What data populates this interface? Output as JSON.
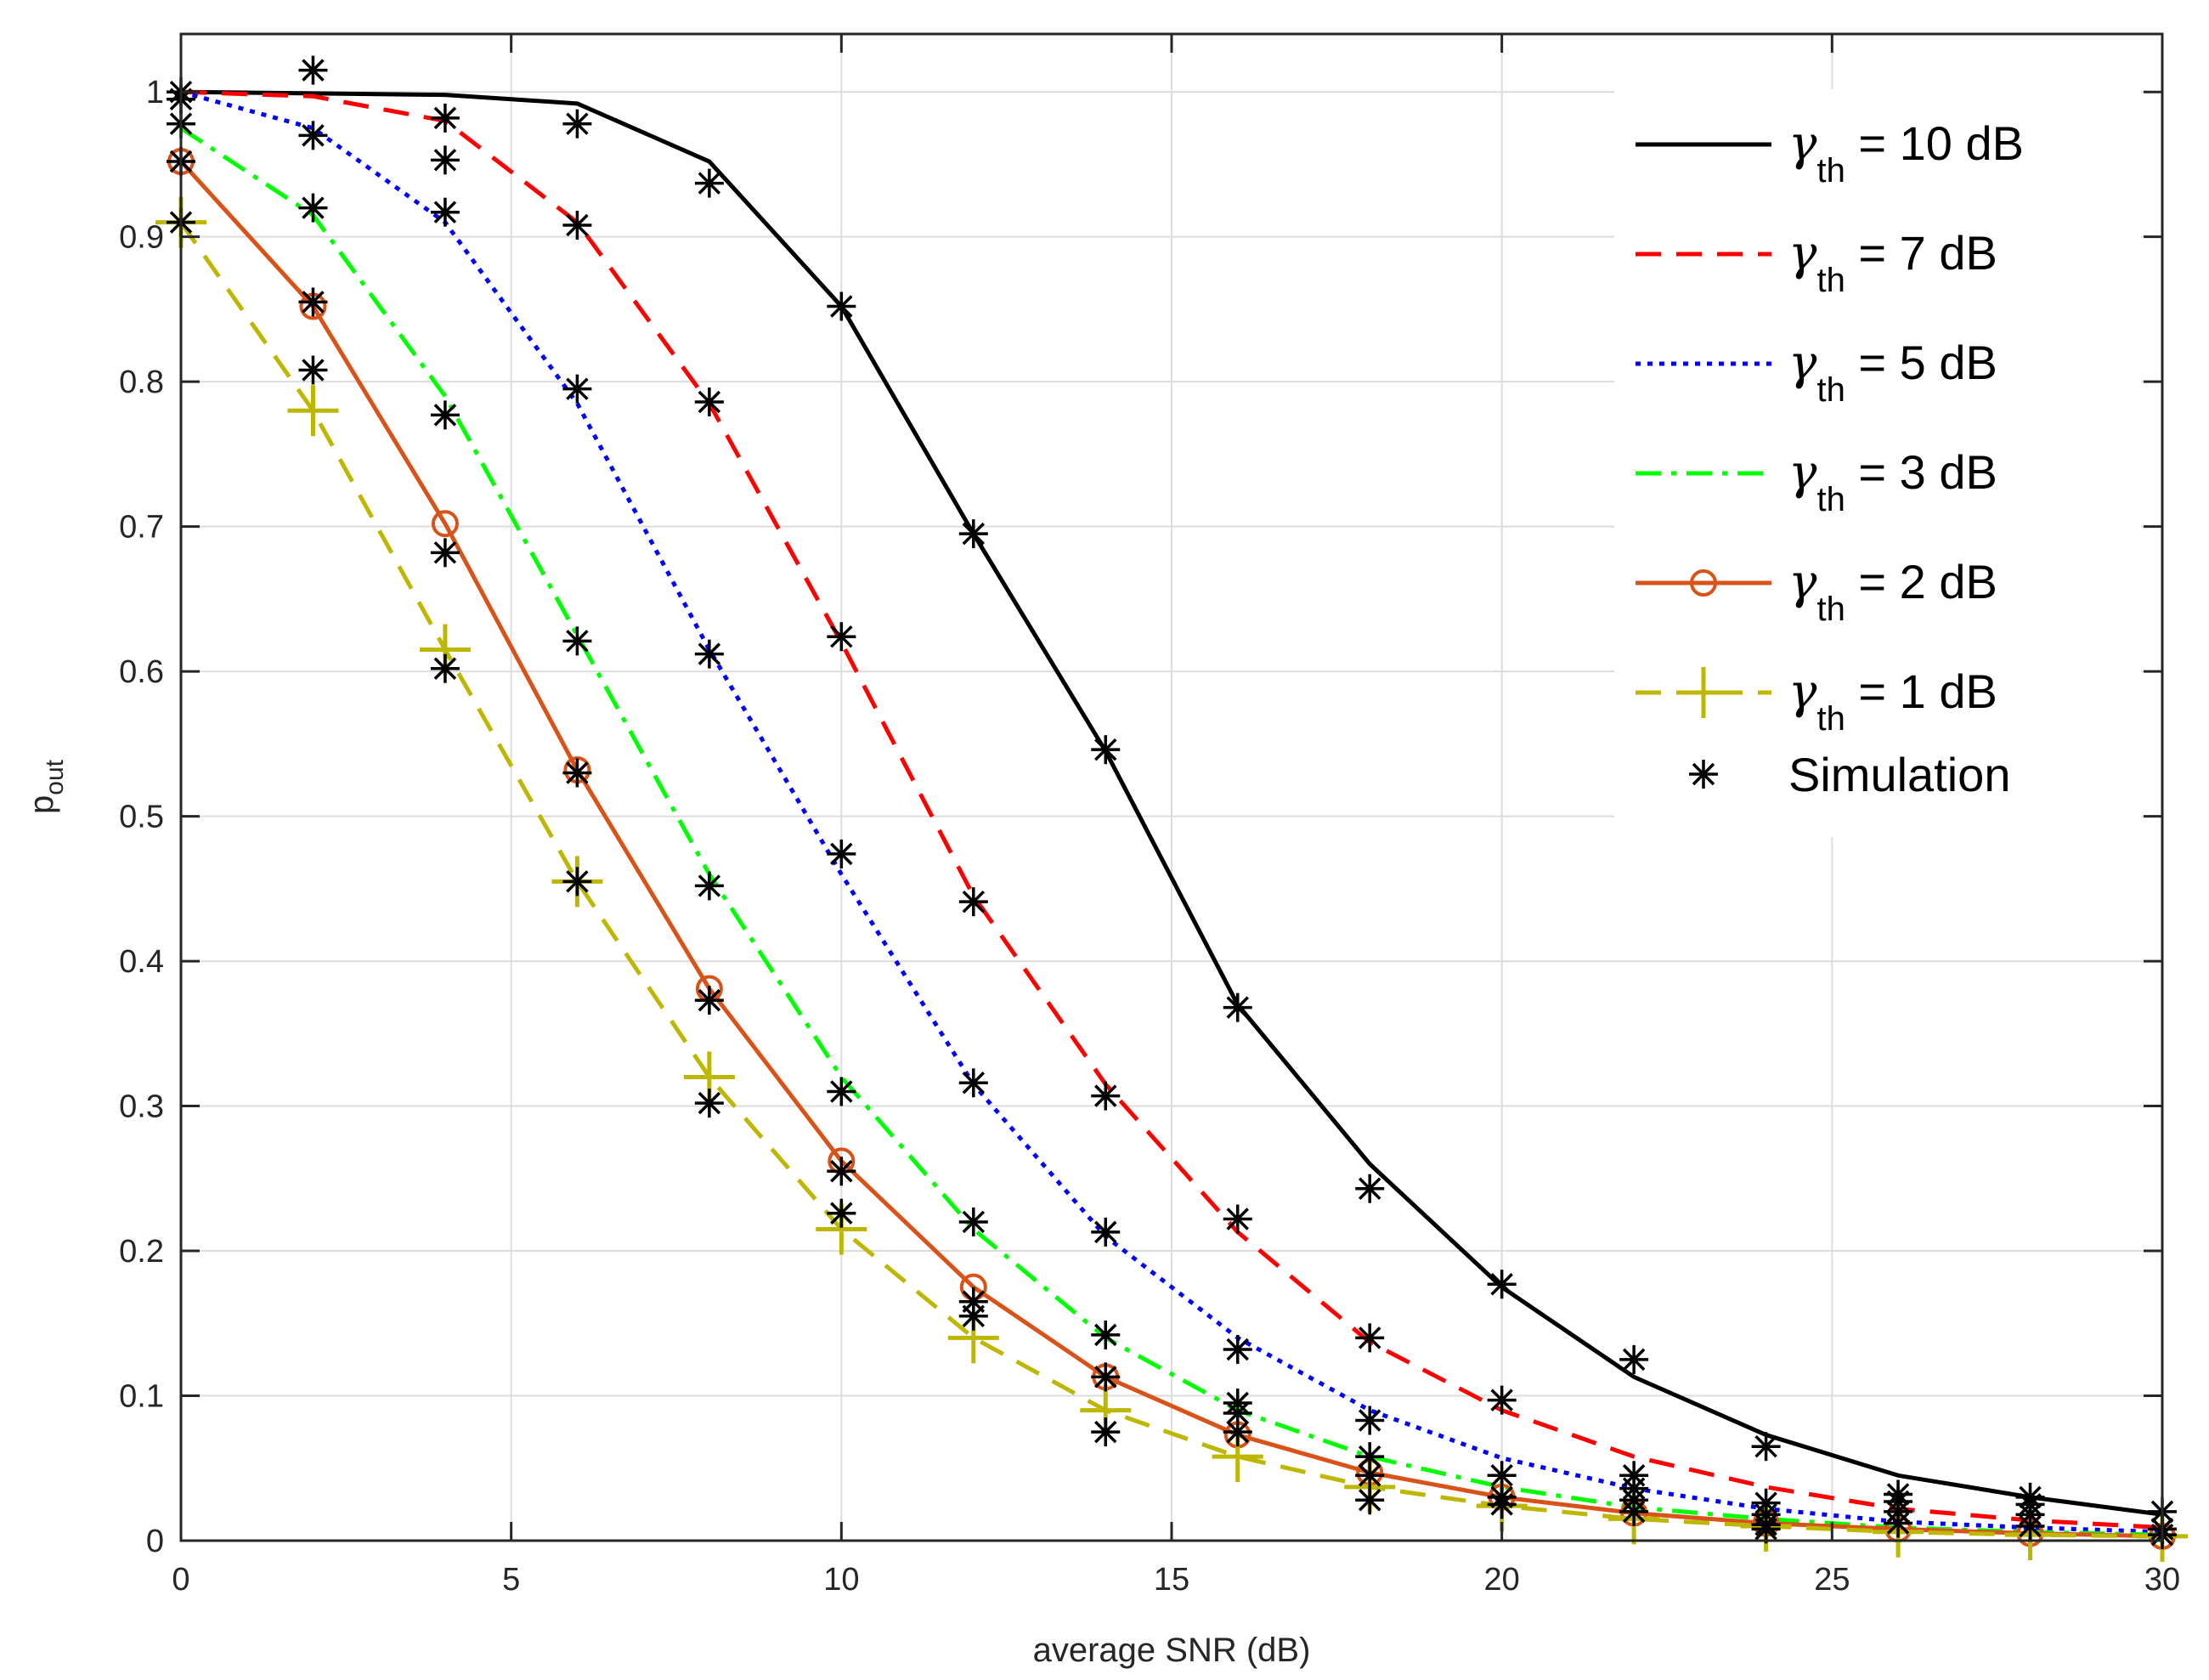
{
  "chart_data": {
    "type": "line",
    "title": "",
    "xlabel": "average SNR (dB)",
    "ylabel_base": "p",
    "ylabel_sub": "out",
    "xlim": [
      0,
      30
    ],
    "ylim": [
      0,
      1.04
    ],
    "xticks": [
      0,
      5,
      10,
      15,
      20,
      25,
      30
    ],
    "xtick_labels": [
      "0",
      "5",
      "10",
      "15",
      "20",
      "25",
      "30"
    ],
    "yticks": [
      0,
      0.1,
      0.2,
      0.3,
      0.4,
      0.5,
      0.6,
      0.7,
      0.8,
      0.9,
      1
    ],
    "ytick_labels": [
      "0",
      "0.1",
      "0.2",
      "0.3",
      "0.4",
      "0.5",
      "0.6",
      "0.7",
      "0.8",
      "0.9",
      "1"
    ],
    "grid": true,
    "legend_position": "top-right",
    "x": [
      0,
      2,
      4,
      6,
      8,
      10,
      12,
      14,
      16,
      18,
      20,
      22,
      24,
      26,
      28,
      30
    ],
    "series": [
      {
        "key": "g10",
        "label_prefix": "γ",
        "label_sub": "th",
        "label_suffix": " = 10 dB",
        "color": "#000000",
        "dash": "solid",
        "marker": "none",
        "values": [
          1.0,
          0.999,
          0.998,
          0.992,
          0.952,
          0.852,
          0.695,
          0.545,
          0.37,
          0.26,
          0.175,
          0.113,
          0.073,
          0.045,
          0.03,
          0.018
        ]
      },
      {
        "key": "g7",
        "label_prefix": "γ",
        "label_sub": "th",
        "label_suffix": " = 7 dB",
        "color": "#ff0000",
        "dash": "dashed",
        "marker": "none",
        "values": [
          1.0,
          0.997,
          0.98,
          0.91,
          0.785,
          0.62,
          0.445,
          0.315,
          0.213,
          0.137,
          0.09,
          0.058,
          0.037,
          0.022,
          0.014,
          0.009
        ]
      },
      {
        "key": "g5",
        "label_prefix": "γ",
        "label_sub": "th",
        "label_suffix": " = 5 dB",
        "color": "#0000ff",
        "dash": "dotted",
        "marker": "none",
        "values": [
          1.0,
          0.975,
          0.91,
          0.785,
          0.615,
          0.46,
          0.315,
          0.21,
          0.14,
          0.09,
          0.057,
          0.036,
          0.022,
          0.013,
          0.009,
          0.006
        ]
      },
      {
        "key": "g3",
        "label_prefix": "γ",
        "label_sub": "th",
        "label_suffix": " = 3 dB",
        "color": "#00ff00",
        "dash": "dashdot",
        "marker": "none",
        "values": [
          0.975,
          0.915,
          0.79,
          0.625,
          0.46,
          0.32,
          0.215,
          0.14,
          0.09,
          0.058,
          0.037,
          0.023,
          0.015,
          0.009,
          0.006,
          0.004
        ]
      },
      {
        "key": "g2",
        "label_prefix": "γ",
        "label_sub": "th",
        "label_suffix": " = 2 dB",
        "color": "#d95319",
        "dash": "solid",
        "marker": "circle",
        "values": [
          0.952,
          0.852,
          0.702,
          0.532,
          0.381,
          0.262,
          0.175,
          0.113,
          0.073,
          0.047,
          0.03,
          0.019,
          0.012,
          0.008,
          0.005,
          0.003
        ]
      },
      {
        "key": "g1",
        "label_prefix": "γ",
        "label_sub": "th",
        "label_suffix": " = 1 dB",
        "color": "#bdb700",
        "dash": "dashed",
        "marker": "plus",
        "values": [
          0.91,
          0.78,
          0.615,
          0.455,
          0.32,
          0.215,
          0.14,
          0.09,
          0.058,
          0.037,
          0.024,
          0.015,
          0.01,
          0.006,
          0.004,
          0.003
        ]
      }
    ],
    "simulation": {
      "label": "Simulation",
      "color": "#000000",
      "marker": "asterisk",
      "points": [
        [
          0,
          1.0
        ],
        [
          0,
          0.995
        ],
        [
          0,
          0.978
        ],
        [
          0,
          0.952
        ],
        [
          0,
          0.91
        ],
        [
          2,
          1.015
        ],
        [
          2,
          0.97
        ],
        [
          2,
          0.92
        ],
        [
          2,
          0.855
        ],
        [
          2,
          0.808
        ],
        [
          4,
          0.982
        ],
        [
          4,
          0.953
        ],
        [
          4,
          0.917
        ],
        [
          4,
          0.777
        ],
        [
          4,
          0.682
        ],
        [
          4,
          0.602
        ],
        [
          6,
          0.978
        ],
        [
          6,
          0.908
        ],
        [
          6,
          0.795
        ],
        [
          6,
          0.621
        ],
        [
          6,
          0.53
        ],
        [
          6,
          0.455
        ],
        [
          8,
          0.937
        ],
        [
          8,
          0.786
        ],
        [
          8,
          0.612
        ],
        [
          8,
          0.452
        ],
        [
          8,
          0.373
        ],
        [
          8,
          0.302
        ],
        [
          10,
          0.852
        ],
        [
          10,
          0.624
        ],
        [
          10,
          0.474
        ],
        [
          10,
          0.31
        ],
        [
          10,
          0.255
        ],
        [
          10,
          0.226
        ],
        [
          12,
          0.695
        ],
        [
          12,
          0.441
        ],
        [
          12,
          0.316
        ],
        [
          12,
          0.22
        ],
        [
          12,
          0.165
        ],
        [
          12,
          0.155
        ],
        [
          14,
          0.546
        ],
        [
          14,
          0.307
        ],
        [
          14,
          0.213
        ],
        [
          14,
          0.142
        ],
        [
          14,
          0.113
        ],
        [
          14,
          0.075
        ],
        [
          16,
          0.368
        ],
        [
          16,
          0.222
        ],
        [
          16,
          0.132
        ],
        [
          16,
          0.095
        ],
        [
          16,
          0.088
        ],
        [
          16,
          0.075
        ],
        [
          18,
          0.243
        ],
        [
          18,
          0.14
        ],
        [
          18,
          0.083
        ],
        [
          18,
          0.058
        ],
        [
          18,
          0.045
        ],
        [
          18,
          0.028
        ],
        [
          20,
          0.177
        ],
        [
          20,
          0.097
        ],
        [
          20,
          0.045
        ],
        [
          20,
          0.03
        ],
        [
          20,
          0.025
        ],
        [
          22,
          0.125
        ],
        [
          22,
          0.045
        ],
        [
          22,
          0.036
        ],
        [
          22,
          0.028
        ],
        [
          22,
          0.02
        ],
        [
          24,
          0.065
        ],
        [
          24,
          0.026
        ],
        [
          24,
          0.018
        ],
        [
          24,
          0.011
        ],
        [
          24,
          0.008
        ],
        [
          26,
          0.032
        ],
        [
          26,
          0.027
        ],
        [
          26,
          0.02
        ],
        [
          26,
          0.012
        ],
        [
          28,
          0.03
        ],
        [
          28,
          0.025
        ],
        [
          28,
          0.018
        ],
        [
          28,
          0.01
        ],
        [
          30,
          0.02
        ],
        [
          30,
          0.008
        ],
        [
          30,
          0.004
        ]
      ]
    }
  }
}
